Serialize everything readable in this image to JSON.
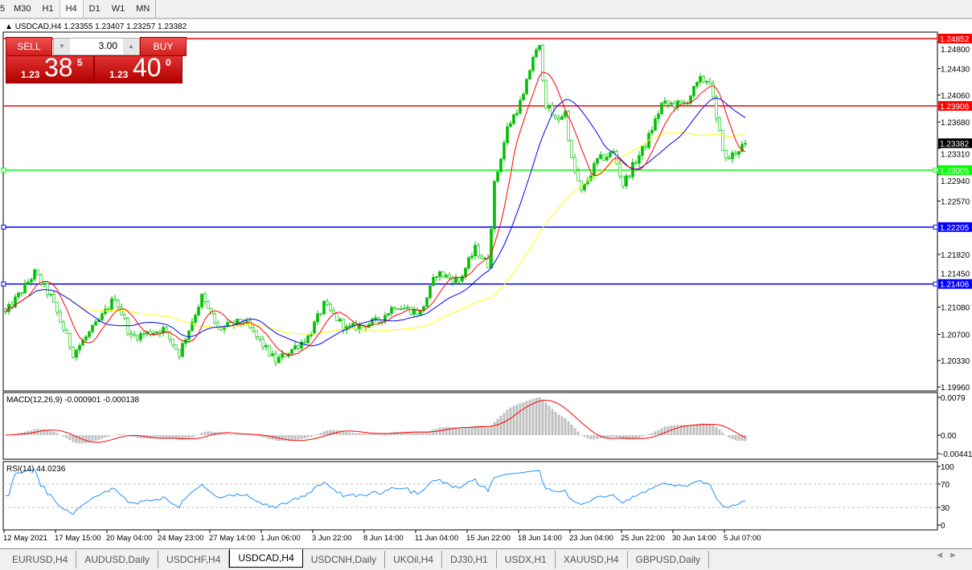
{
  "toolbar": {
    "timeframes": [
      "5",
      "M30",
      "H1",
      "H4",
      "D1",
      "W1",
      "MN"
    ],
    "active": "H4"
  },
  "chart_header": {
    "title": "USDCAD,H4  1.23355 1.23407 1.23257 1.23382"
  },
  "trade_panel": {
    "sell_label": "SELL",
    "buy_label": "BUY",
    "lot": "3.00",
    "sell_small": "1.23",
    "sell_big": "38",
    "sell_sup": "5",
    "buy_small": "1.23",
    "buy_big": "40",
    "buy_sup": "0"
  },
  "colors": {
    "bull": "#00c000",
    "bear": "#ffffff",
    "ma_fast": "#ff0000",
    "ma_mid": "#0000ff",
    "ma_slow": "#ffff00",
    "macd_hist": "#c0c0c0",
    "macd_signal": "#ff0000",
    "rsi": "#1e90ff"
  },
  "chart_data": [
    {
      "type": "candlestick",
      "symbol": "USDCAD",
      "timeframe": "H4",
      "close_waypoints": [
        [
          0,
          1.20997
        ],
        [
          9,
          1.2156
        ],
        [
          14,
          1.21223
        ],
        [
          21,
          1.20434
        ],
        [
          29,
          1.20885
        ],
        [
          34,
          1.21223
        ],
        [
          39,
          1.2066
        ],
        [
          49,
          1.20772
        ],
        [
          54,
          1.20434
        ],
        [
          61,
          1.21223
        ],
        [
          66,
          1.20772
        ],
        [
          74,
          1.20885
        ],
        [
          84,
          1.20321
        ],
        [
          94,
          1.2066
        ],
        [
          99,
          1.2111
        ],
        [
          106,
          1.20772
        ],
        [
          116,
          1.20885
        ],
        [
          121,
          1.2111
        ],
        [
          129,
          1.20997
        ],
        [
          134,
          1.2156
        ],
        [
          141,
          1.21448
        ],
        [
          146,
          1.21899
        ],
        [
          150,
          1.21674
        ],
        [
          152,
          1.22801
        ],
        [
          156,
          1.2359
        ],
        [
          161,
          1.24041
        ],
        [
          164,
          1.24604
        ],
        [
          166,
          1.24717
        ],
        [
          168,
          1.23928
        ],
        [
          171,
          1.23702
        ],
        [
          174,
          1.23815
        ],
        [
          176,
          1.23139
        ],
        [
          179,
          1.22688
        ],
        [
          184,
          1.23139
        ],
        [
          189,
          1.23252
        ],
        [
          192,
          1.22801
        ],
        [
          196,
          1.23139
        ],
        [
          199,
          1.23364
        ],
        [
          204,
          1.23928
        ],
        [
          211,
          1.23928
        ],
        [
          216,
          1.24266
        ],
        [
          219,
          1.24266
        ],
        [
          221,
          1.23702
        ],
        [
          224,
          1.23139
        ],
        [
          230,
          1.23382
        ]
      ],
      "y_ticks": [
        "1.24800",
        "1.24430",
        "1.24060",
        "1.23680",
        "1.23310",
        "1.22940",
        "1.22570",
        "1.21820",
        "1.21450",
        "1.21080",
        "1.20700",
        "1.20330",
        "1.19960"
      ],
      "ylim": [
        1.1996,
        1.2485
      ],
      "hlines": [
        {
          "value": "1.24852",
          "color": "#ff0000"
        },
        {
          "value": "1.23906",
          "color": "#ff0000"
        },
        {
          "value": "1.23005",
          "color": "#00ff00"
        },
        {
          "value": "1.22205",
          "color": "#0000ff"
        },
        {
          "value": "1.21406",
          "color": "#0000ff"
        }
      ],
      "current_price": "1.23382",
      "x_labels": [
        "12 May 2021",
        "17 May 15:00",
        "20 May 04:00",
        "24 May 23:00",
        "27 May 14:00",
        "1 Jun 06:00",
        "3 Jun 22:00",
        "8 Jun 14:00",
        "11 Jun 04:00",
        "15 Jun 22:00",
        "18 Jun 14:00",
        "23 Jun 04:00",
        "25 Jun 22:00",
        "30 Jun 14:00",
        "5 Jul 07:00"
      ]
    },
    {
      "type": "bar",
      "indicator": "MACD",
      "title": "MACD(12,26,9) -0.000901 -0.000138",
      "y_ticks": [
        "0.0079",
        "0.00",
        "-0.004418"
      ],
      "ylim": [
        -0.004418,
        0.0079
      ]
    },
    {
      "type": "line",
      "indicator": "RSI",
      "title": "RSI(14) 44.0236",
      "y_ticks": [
        "100",
        "70",
        "30",
        "0"
      ],
      "ylim": [
        0,
        100
      ],
      "levels": [
        70,
        30
      ]
    }
  ],
  "tabs": [
    "EURUSD,H4",
    "AUDUSD,Daily",
    "USDCHF,H4",
    "USDCAD,H4",
    "USDCNH,Daily",
    "UKOil,H4",
    "DJ30,H1",
    "USDX,H1",
    "XAUUSD,H4",
    "GBPUSD,Daily"
  ],
  "active_tab": "USDCAD,H4"
}
